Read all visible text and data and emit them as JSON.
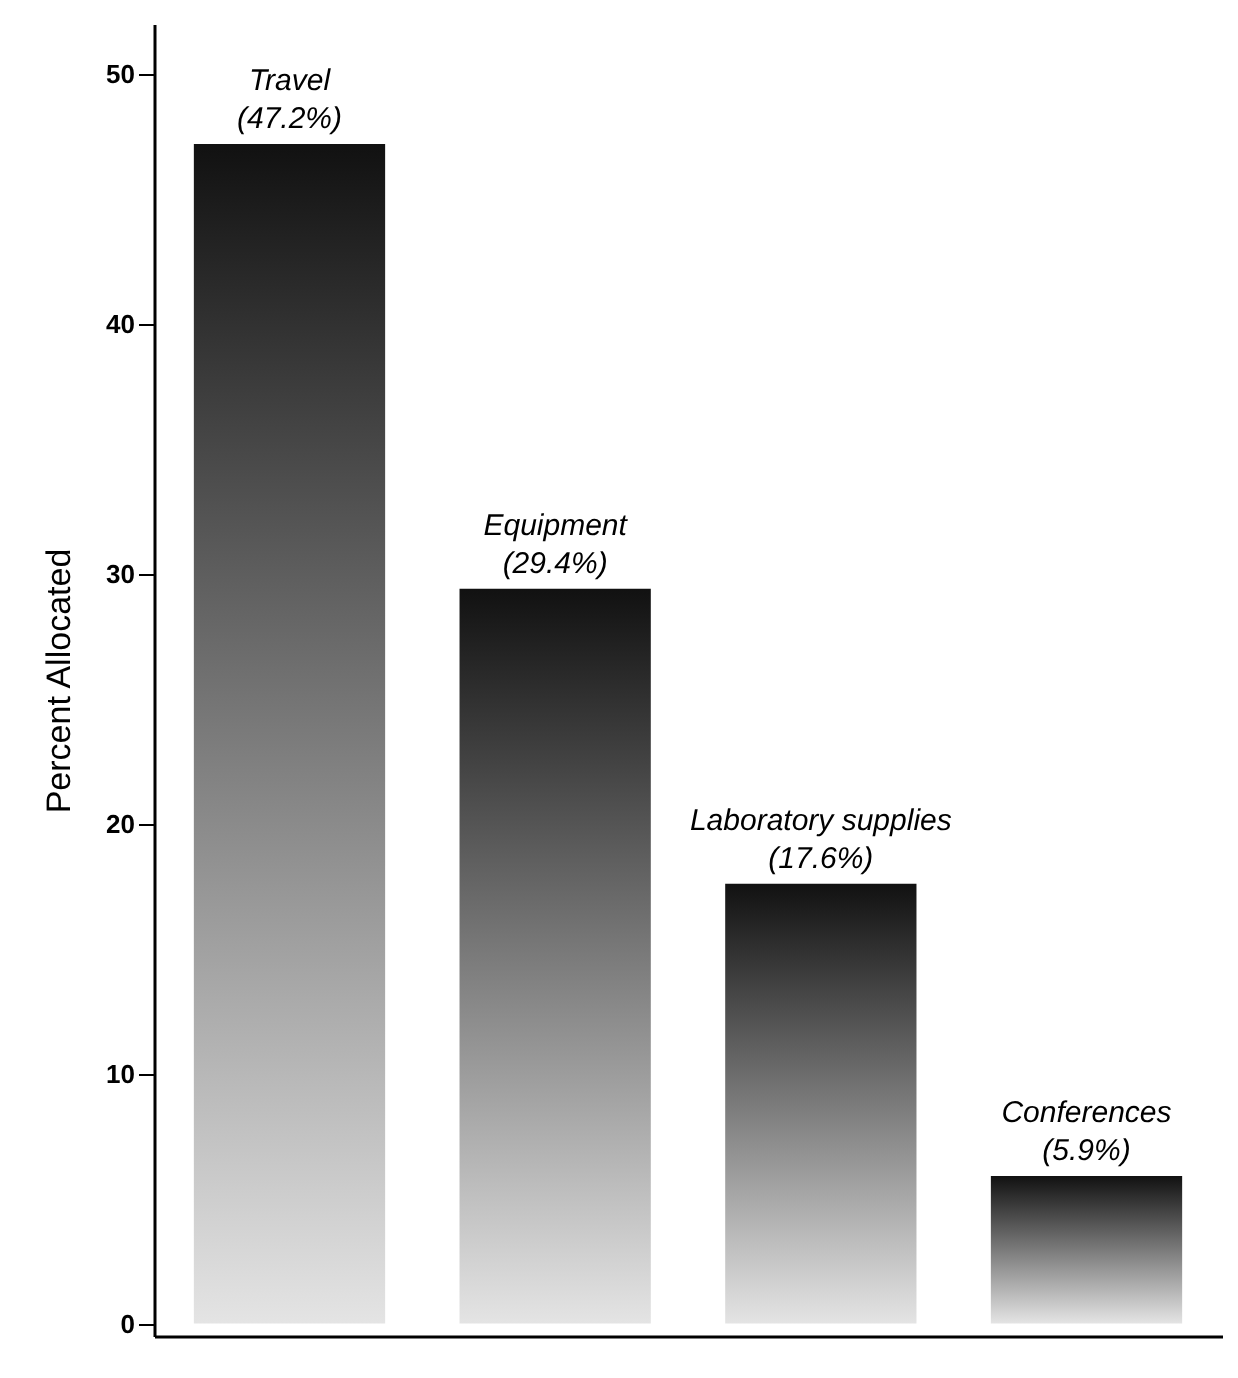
{
  "chart_data": {
    "type": "bar",
    "ylabel": "Percent Allocated",
    "categories": [
      "Travel",
      "Equipment",
      "Laboratory supplies",
      "Conferences"
    ],
    "values": [
      47.2,
      29.4,
      17.6,
      5.9
    ],
    "value_labels": [
      "(47.2%)",
      "(29.4%)",
      "(17.6%)",
      "(5.9%)"
    ],
    "color": "#111111",
    "ylim": [
      -0.5,
      52
    ],
    "yticks": [
      0,
      10,
      20,
      30,
      40,
      50
    ],
    "grid": false
  }
}
